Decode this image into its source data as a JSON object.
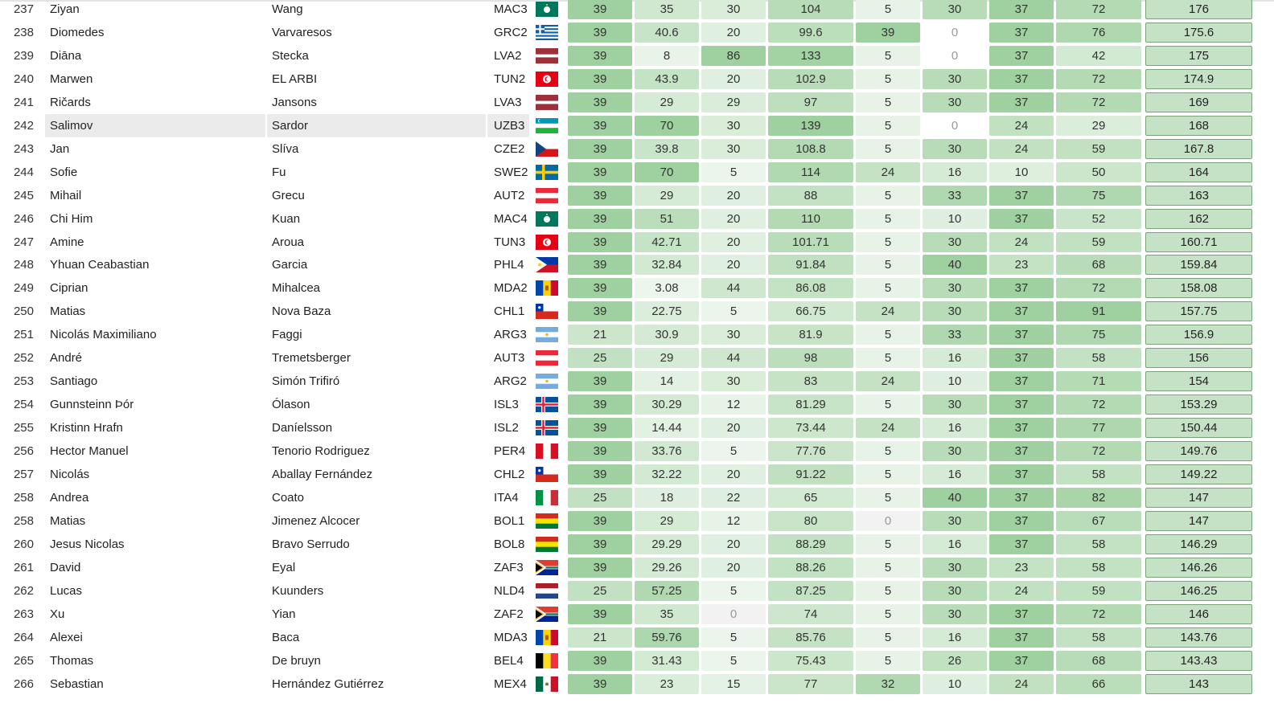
{
  "colors": {
    "score_min": "#ffffff",
    "score_mid": "#d0e8d0",
    "score_max": "#9fd09f",
    "zero_cell": "#f2f2f2",
    "total_bg": "#c6e2c6",
    "highlight": "#ebebeb"
  },
  "rows": [
    {
      "rank": "237",
      "first": "Ziyan",
      "last": "Wang",
      "code": "MAC3",
      "flag": "MAC",
      "scores": [
        "39",
        "35",
        "30",
        "104",
        "5",
        "30",
        "37",
        "72"
      ],
      "total": "176"
    },
    {
      "rank": "238",
      "first": "Diomedes",
      "last": "Varvaresos",
      "code": "GRC2",
      "flag": "GRC",
      "scores": [
        "39",
        "40.6",
        "20",
        "99.6",
        "39",
        "0",
        "37",
        "76"
      ],
      "total": "175.6"
    },
    {
      "rank": "239",
      "first": "Diāna",
      "last": "Stecka",
      "code": "LVA2",
      "flag": "LVA",
      "scores": [
        "39",
        "8",
        "86",
        "133",
        "5",
        "0",
        "37",
        "42"
      ],
      "total": "175"
    },
    {
      "rank": "240",
      "first": "Marwen",
      "last": "EL ARBI",
      "code": "TUN2",
      "flag": "TUN",
      "scores": [
        "39",
        "43.9",
        "20",
        "102.9",
        "5",
        "30",
        "37",
        "72"
      ],
      "total": "174.9"
    },
    {
      "rank": "241",
      "first": "Ričards",
      "last": "Jansons",
      "code": "LVA3",
      "flag": "LVA",
      "scores": [
        "39",
        "29",
        "29",
        "97",
        "5",
        "30",
        "37",
        "72"
      ],
      "total": "169"
    },
    {
      "rank": "242",
      "first": "Salimov",
      "last": "Sardor",
      "code": "UZB3",
      "flag": "UZB",
      "scores": [
        "39",
        "70",
        "30",
        "139",
        "5",
        "0",
        "24",
        "29"
      ],
      "total": "168",
      "highlight": true
    },
    {
      "rank": "243",
      "first": "Jan",
      "last": "Slíva",
      "code": "CZE2",
      "flag": "CZE",
      "scores": [
        "39",
        "39.8",
        "30",
        "108.8",
        "5",
        "30",
        "24",
        "59"
      ],
      "total": "167.8"
    },
    {
      "rank": "244",
      "first": "Sofie",
      "last": "Fu",
      "code": "SWE2",
      "flag": "SWE",
      "scores": [
        "39",
        "70",
        "5",
        "114",
        "24",
        "16",
        "10",
        "50"
      ],
      "total": "164"
    },
    {
      "rank": "245",
      "first": "Mihail",
      "last": "Grecu",
      "code": "AUT2",
      "flag": "AUT",
      "scores": [
        "39",
        "29",
        "20",
        "88",
        "5",
        "33",
        "37",
        "75"
      ],
      "total": "163"
    },
    {
      "rank": "246",
      "first": "Chi Him",
      "last": "Kuan",
      "code": "MAC4",
      "flag": "MAC",
      "scores": [
        "39",
        "51",
        "20",
        "110",
        "5",
        "10",
        "37",
        "52"
      ],
      "total": "162"
    },
    {
      "rank": "247",
      "first": "Amine",
      "last": "Aroua",
      "code": "TUN3",
      "flag": "TUN",
      "scores": [
        "39",
        "42.71",
        "20",
        "101.71",
        "5",
        "30",
        "24",
        "59"
      ],
      "total": "160.71"
    },
    {
      "rank": "248",
      "first": "Yhuan Ceabastian",
      "last": "Garcia",
      "code": "PHL4",
      "flag": "PHL",
      "scores": [
        "39",
        "32.84",
        "20",
        "91.84",
        "5",
        "40",
        "23",
        "68"
      ],
      "total": "159.84"
    },
    {
      "rank": "249",
      "first": "Ciprian",
      "last": "Mihalcea",
      "code": "MDA2",
      "flag": "MDA",
      "scores": [
        "39",
        "3.08",
        "44",
        "86.08",
        "5",
        "30",
        "37",
        "72"
      ],
      "total": "158.08"
    },
    {
      "rank": "250",
      "first": "Matias",
      "last": "Nova Baza",
      "code": "CHL1",
      "flag": "CHL",
      "scores": [
        "39",
        "22.75",
        "5",
        "66.75",
        "24",
        "30",
        "37",
        "91"
      ],
      "total": "157.75"
    },
    {
      "rank": "251",
      "first": "Nicolás Maximiliano",
      "last": "Faggi",
      "code": "ARG3",
      "flag": "ARG",
      "scores": [
        "21",
        "30.9",
        "30",
        "81.9",
        "5",
        "33",
        "37",
        "75"
      ],
      "total": "156.9"
    },
    {
      "rank": "252",
      "first": "André",
      "last": "Tremetsberger",
      "code": "AUT3",
      "flag": "AUT",
      "scores": [
        "25",
        "29",
        "44",
        "98",
        "5",
        "16",
        "37",
        "58"
      ],
      "total": "156"
    },
    {
      "rank": "253",
      "first": "Santiago",
      "last": "Simón Trifiró",
      "code": "ARG2",
      "flag": "ARG",
      "scores": [
        "39",
        "14",
        "30",
        "83",
        "24",
        "10",
        "37",
        "71"
      ],
      "total": "154"
    },
    {
      "rank": "254",
      "first": "Gunnsteinn Þór",
      "last": "Ólason",
      "code": "ISL3",
      "flag": "ISL",
      "scores": [
        "39",
        "30.29",
        "12",
        "81.29",
        "5",
        "30",
        "37",
        "72"
      ],
      "total": "153.29"
    },
    {
      "rank": "255",
      "first": "Kristinn Hrafn",
      "last": "Daníelsson",
      "code": "ISL2",
      "flag": "ISL",
      "scores": [
        "39",
        "14.44",
        "20",
        "73.44",
        "24",
        "16",
        "37",
        "77"
      ],
      "total": "150.44"
    },
    {
      "rank": "256",
      "first": "Hector Manuel",
      "last": "Tenorio Rodriguez",
      "code": "PER4",
      "flag": "PER",
      "scores": [
        "39",
        "33.76",
        "5",
        "77.76",
        "5",
        "30",
        "37",
        "72"
      ],
      "total": "149.76"
    },
    {
      "rank": "257",
      "first": "Nicolás",
      "last": "Aballay Fernández",
      "code": "CHL2",
      "flag": "CHL",
      "scores": [
        "39",
        "32.22",
        "20",
        "91.22",
        "5",
        "16",
        "37",
        "58"
      ],
      "total": "149.22"
    },
    {
      "rank": "258",
      "first": "Andrea",
      "last": "Coato",
      "code": "ITA4",
      "flag": "ITA",
      "scores": [
        "25",
        "18",
        "22",
        "65",
        "5",
        "40",
        "37",
        "82"
      ],
      "total": "147"
    },
    {
      "rank": "258",
      "first": "Matias",
      "last": "Jimenez Alcocer",
      "code": "BOL1",
      "flag": "BOL",
      "scores": [
        "39",
        "29",
        "12",
        "80",
        "0",
        "30",
        "37",
        "67"
      ],
      "total": "147"
    },
    {
      "rank": "260",
      "first": "Jesus Nicolas",
      "last": "Bravo Serrudo",
      "code": "BOL8",
      "flag": "BOL",
      "scores": [
        "39",
        "29.29",
        "20",
        "88.29",
        "5",
        "16",
        "37",
        "58"
      ],
      "total": "146.29"
    },
    {
      "rank": "261",
      "first": "David",
      "last": "Eyal",
      "code": "ZAF3",
      "flag": "ZAF",
      "scores": [
        "39",
        "29.26",
        "20",
        "88.26",
        "5",
        "30",
        "23",
        "58"
      ],
      "total": "146.26"
    },
    {
      "rank": "262",
      "first": "Lucas",
      "last": "Kuunders",
      "code": "NLD4",
      "flag": "NLD",
      "scores": [
        "25",
        "57.25",
        "5",
        "87.25",
        "5",
        "30",
        "24",
        "59"
      ],
      "total": "146.25"
    },
    {
      "rank": "263",
      "first": "Xu",
      "last": "Yian",
      "code": "ZAF2",
      "flag": "ZAF",
      "scores": [
        "39",
        "35",
        "0",
        "74",
        "5",
        "30",
        "37",
        "72"
      ],
      "total": "146"
    },
    {
      "rank": "264",
      "first": "Alexei",
      "last": "Baca",
      "code": "MDA3",
      "flag": "MDA",
      "scores": [
        "21",
        "59.76",
        "5",
        "85.76",
        "5",
        "16",
        "37",
        "58"
      ],
      "total": "143.76"
    },
    {
      "rank": "265",
      "first": "Thomas",
      "last": "De bruyn",
      "code": "BEL4",
      "flag": "BEL",
      "scores": [
        "39",
        "31.43",
        "5",
        "75.43",
        "5",
        "26",
        "37",
        "68"
      ],
      "total": "143.43"
    },
    {
      "rank": "266",
      "first": "Sebastian",
      "last": "Hernández Gutiérrez",
      "code": "MEX4",
      "flag": "MEX",
      "scores": [
        "39",
        "23",
        "15",
        "77",
        "32",
        "10",
        "24",
        "66"
      ],
      "total": "143"
    }
  ]
}
